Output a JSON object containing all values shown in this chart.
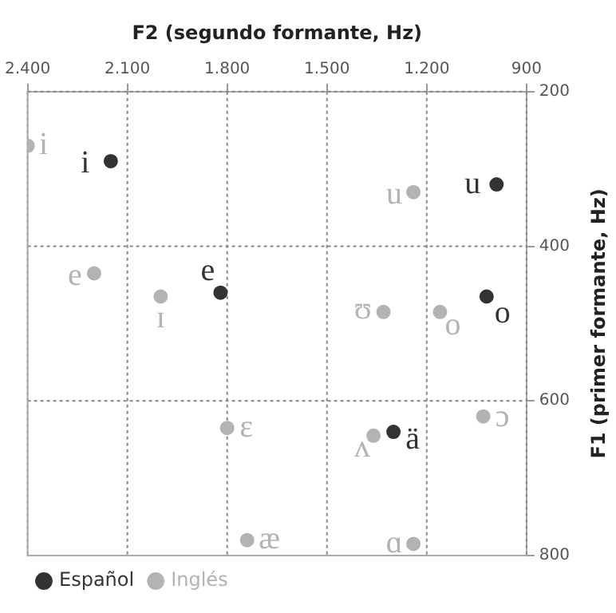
{
  "chart_data": {
    "type": "scatter",
    "xlabel": "F2 (segundo formante, Hz)",
    "ylabel": "F1 (primer formante, Hz)",
    "xlim": [
      2400,
      900
    ],
    "xticks": [
      {
        "value": 2400,
        "label": "2.400"
      },
      {
        "value": 2100,
        "label": "2.100"
      },
      {
        "value": 1800,
        "label": "1.800"
      },
      {
        "value": 1500,
        "label": "1.500"
      },
      {
        "value": 1200,
        "label": "1.200"
      },
      {
        "value": 900,
        "label": "900"
      }
    ],
    "ylim": [
      800,
      200
    ],
    "yticks": [
      200,
      400,
      600,
      800
    ],
    "grid": true,
    "legend": "bottom left",
    "marker": "circle",
    "series": [
      {
        "name": "Español",
        "color": "#333333",
        "x": [
          2150,
          990,
          1820,
          1020,
          1300
        ],
        "values": [
          290,
          320,
          460,
          465,
          640
        ],
        "value_labels": [
          "i",
          "u",
          "e",
          "o",
          "ä"
        ]
      },
      {
        "name": "Inglés",
        "color": "#b3b3b3",
        "x": [
          2400,
          1240,
          2200,
          2000,
          1330,
          1160,
          1800,
          1360,
          1030,
          1740,
          1240
        ],
        "values": [
          270,
          330,
          435,
          465,
          485,
          485,
          635,
          645,
          620,
          780,
          785
        ],
        "value_labels": [
          "i",
          "u",
          "e",
          "ɪ",
          "ʊ",
          "o",
          "ɛ",
          "ʌ",
          "ɔ",
          "æ",
          "ɑ"
        ]
      }
    ]
  }
}
